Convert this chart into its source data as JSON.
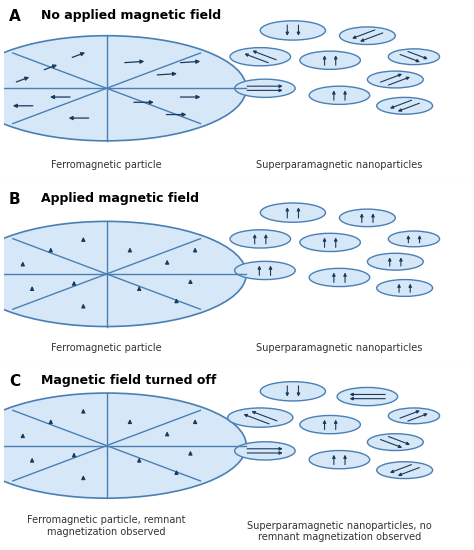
{
  "bg_color": "#ffffff",
  "circle_fill": "#d6e8f7",
  "circle_edge": "#4a7fb5",
  "arrow_color": "#1a3a5c",
  "line_color": "#4a7fb5",
  "text_color": "#000000",
  "label_color": "#333333",
  "section_labels": [
    "A",
    "B",
    "C"
  ],
  "section_titles": [
    "No applied magnetic field",
    "Applied magnetic field",
    "Magnetic field turned off"
  ],
  "ferro_labels": [
    "Ferromagnetic particle",
    "Ferromagnetic particle",
    "Ferromagnetic particle, remnant\nmagnetization observed"
  ],
  "nano_labels": [
    "Superparamagnetic nanoparticles",
    "Superparamagnetic nanoparticles",
    "Superparamagnetic nanoparticles, no\nremnant magnetization observed"
  ]
}
